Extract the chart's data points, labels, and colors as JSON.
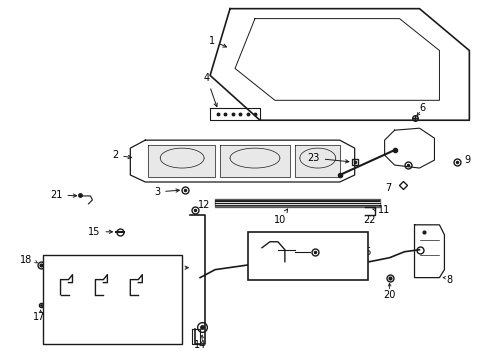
{
  "background_color": "#ffffff",
  "fig_width": 4.89,
  "fig_height": 3.6,
  "dpi": 100,
  "line_color": "#1a1a1a",
  "text_color": "#000000",
  "font_size": 7.0
}
